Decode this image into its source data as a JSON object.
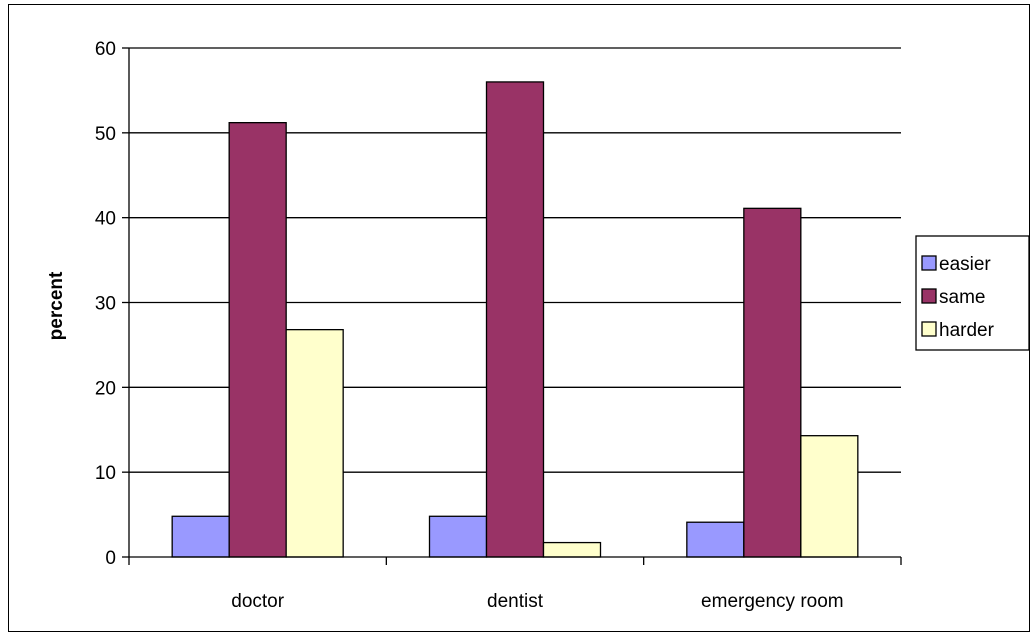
{
  "chart_data": {
    "type": "bar",
    "title": "",
    "xlabel": "",
    "ylabel": "percent",
    "ylim": [
      0,
      60
    ],
    "yticks": [
      0,
      10,
      20,
      30,
      40,
      50,
      60
    ],
    "grid": true,
    "legend_position": "right",
    "categories": [
      "doctor",
      "dentist",
      "emergency room"
    ],
    "series": [
      {
        "name": "easier",
        "color": "#9999ff",
        "values": [
          4.8,
          4.8,
          4.1
        ]
      },
      {
        "name": "same",
        "color": "#993366",
        "values": [
          51.2,
          56.0,
          41.1
        ]
      },
      {
        "name": "harder",
        "color": "#ffffcc",
        "values": [
          26.8,
          1.7,
          14.3
        ]
      }
    ]
  }
}
